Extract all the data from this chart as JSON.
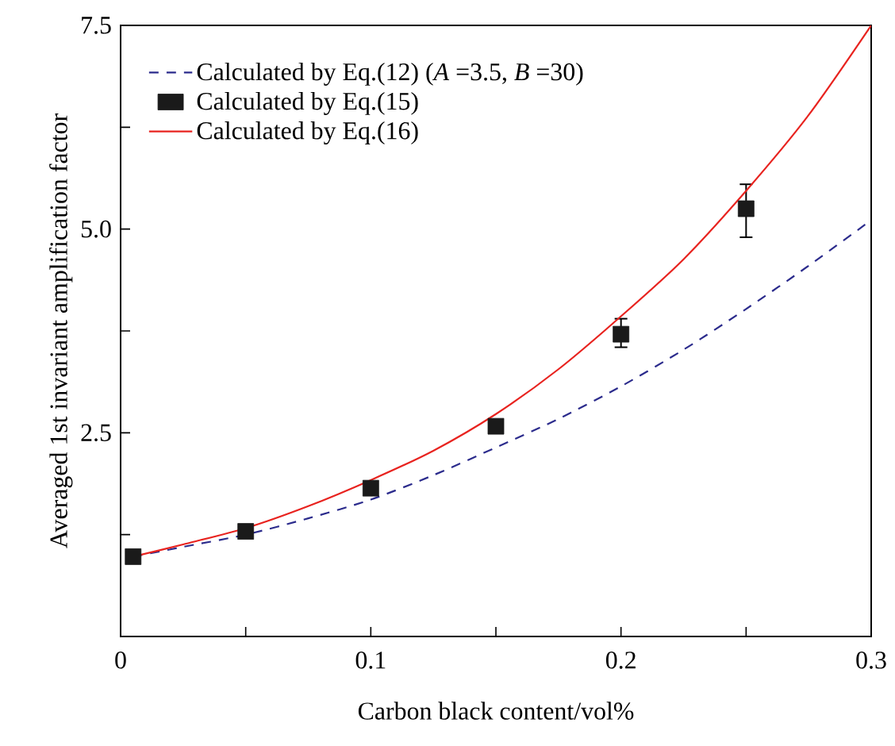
{
  "chart_data": {
    "type": "line",
    "xlabel": "Carbon black content/vol%",
    "ylabel": "Averaged 1st invariant amplification factor",
    "xlim": [
      0,
      0.3
    ],
    "ylim": [
      0,
      7.5
    ],
    "xticks": [
      0,
      {
        "value": 0.05,
        "label": null
      },
      0.1,
      {
        "value": 0.15,
        "label": null
      },
      0.2,
      {
        "value": 0.25,
        "label": null
      },
      0.3
    ],
    "yticks": [
      {
        "value": 0,
        "label": null
      },
      {
        "value": 1.25,
        "label": null
      },
      2.5,
      {
        "value": 3.75,
        "label": null
      },
      {
        "value": 5,
        "label": "5.0"
      },
      {
        "value": 6.25,
        "label": null
      },
      7.5
    ],
    "grid": false,
    "legend": "top left",
    "series": [
      {
        "name": "Calculated by Eq.(12) (*A* =3.5, *B* =30)",
        "color": "#2b2b8c",
        "line_style": "dashed",
        "marker": "none",
        "x": [
          0.005,
          0.025,
          0.05,
          0.075,
          0.1,
          0.125,
          0.15,
          0.175,
          0.2,
          0.225,
          0.25,
          0.275,
          0.3
        ],
        "values": [
          0.98,
          1.1,
          1.25,
          1.45,
          1.68,
          1.98,
          2.32,
          2.67,
          3.07,
          3.52,
          4.02,
          4.55,
          5.11
        ]
      },
      {
        "name": "Calculated by Eq.(15)",
        "type": "scatter",
        "color": "#1a1a1a",
        "marker": "square",
        "x": [
          0.005,
          0.05,
          0.1,
          0.15,
          0.2,
          0.25
        ],
        "values": [
          0.98,
          1.29,
          1.82,
          2.58,
          3.71,
          5.25
        ],
        "errors": [
          null,
          null,
          null,
          null,
          [
            3.55,
            3.9
          ],
          [
            4.9,
            5.55
          ]
        ]
      },
      {
        "name": "Calculated by Eq.(16)",
        "color": "#e8231f",
        "line_style": "solid",
        "marker": "none",
        "x": [
          0.005,
          0.025,
          0.05,
          0.075,
          0.1,
          0.125,
          0.15,
          0.175,
          0.2,
          0.225,
          0.25,
          0.275,
          0.3
        ],
        "values": [
          0.98,
          1.13,
          1.33,
          1.6,
          1.92,
          2.28,
          2.73,
          3.28,
          3.93,
          4.63,
          5.47,
          6.4,
          7.5
        ]
      }
    ]
  }
}
